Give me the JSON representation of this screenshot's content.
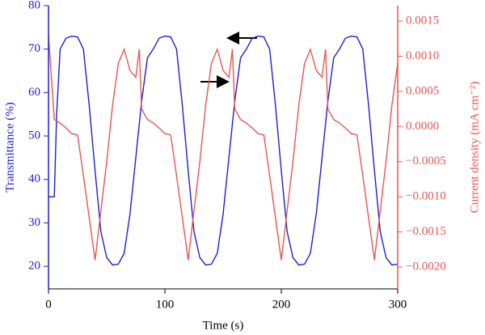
{
  "chart_data": {
    "type": "line",
    "xlabel": "Time (s)",
    "ylabel": "Transmittance (%)",
    "y2label": "Current density (mA cm⁻²)",
    "xlim": [
      0,
      300
    ],
    "xticks": [
      0,
      100,
      200,
      300
    ],
    "ylim": [
      14.8,
      80
    ],
    "yticks": [
      20,
      30,
      40,
      50,
      60,
      70,
      80
    ],
    "y2lim": [
      -0.00231,
      0.00172
    ],
    "y2ticks": [
      {
        "value": -0.002,
        "label": "−0.0020"
      },
      {
        "value": -0.0015,
        "label": "−0.0015"
      },
      {
        "value": -0.001,
        "label": "−0.0010"
      },
      {
        "value": -0.0005,
        "label": "−0.0005"
      },
      {
        "value": 0,
        "label": "0.0000"
      },
      0.0005,
      {
        "value": 0.001,
        "label": "0.0010"
      },
      0.0015
    ],
    "ycolor": "#1f1fd0",
    "y2color": "#e8564f",
    "series": [
      {
        "color": "#1f1fd0",
        "x": [
          0,
          5,
          7,
          10,
          15,
          20,
          25,
          30,
          35,
          40,
          45,
          50,
          55,
          60,
          65,
          70,
          75,
          80,
          85,
          90,
          95,
          100,
          105,
          110,
          115,
          120,
          125,
          130,
          135,
          140,
          145,
          150,
          155,
          160,
          165,
          170,
          175,
          180,
          185,
          190,
          195,
          200,
          205,
          210,
          215,
          220,
          225,
          230,
          235,
          240,
          245,
          250,
          255,
          260,
          265,
          270,
          275,
          280,
          285,
          290,
          295,
          300
        ],
        "values": [
          36,
          36,
          55,
          70,
          72.5,
          73,
          72.8,
          70,
          57,
          42,
          28,
          22,
          20.3,
          20.5,
          23,
          32,
          45,
          58,
          68,
          70,
          72.5,
          73,
          72.8,
          70,
          57,
          42,
          28,
          22,
          20.3,
          20.5,
          23,
          32,
          45,
          58,
          68,
          70,
          72.5,
          73,
          72.8,
          70,
          57,
          42,
          28,
          22,
          20.3,
          20.5,
          23,
          32,
          45,
          58,
          68,
          70,
          72.5,
          73,
          72.8,
          70,
          57,
          42,
          28,
          22,
          20.3,
          20.5
        ]
      },
      {
        "color": "#e8564f",
        "axis": "y2",
        "x": [
          0,
          5,
          10,
          15,
          20,
          25,
          30,
          35,
          40,
          45,
          50,
          55,
          60,
          65,
          70,
          75,
          78,
          80,
          85,
          90,
          95,
          100,
          105,
          110,
          115,
          120,
          125,
          130,
          135,
          140,
          145,
          150,
          155,
          158,
          160,
          165,
          170,
          175,
          180,
          185,
          190,
          195,
          200,
          205,
          210,
          215,
          220,
          225,
          230,
          235,
          238,
          240,
          245,
          250,
          255,
          260,
          265,
          270,
          275,
          280,
          285,
          290,
          295,
          300
        ],
        "values": [
          0.0013,
          0.0001,
          5e-05,
          -2e-05,
          -0.0001,
          -0.00012,
          -0.0007,
          -0.0013,
          -0.0019,
          -0.0012,
          -0.0005,
          0.0003,
          0.0009,
          0.0011,
          0.0008,
          0.0007,
          0.0011,
          0.00025,
          0.0001,
          5e-05,
          -2e-05,
          -0.0001,
          -0.00012,
          -0.0007,
          -0.0013,
          -0.0019,
          -0.0012,
          -0.0005,
          0.0003,
          0.0009,
          0.0011,
          0.0008,
          0.0007,
          0.0011,
          0.00025,
          0.0001,
          5e-05,
          -2e-05,
          -0.0001,
          -0.00012,
          -0.0007,
          -0.0013,
          -0.0019,
          -0.0012,
          -0.0005,
          0.0003,
          0.0009,
          0.0011,
          0.0008,
          0.0007,
          0.0011,
          0.00025,
          0.0001,
          5e-05,
          -2e-05,
          -0.0001,
          -0.00012,
          -0.0007,
          -0.0013,
          -0.0019,
          -0.0012,
          -0.0005,
          0.0003,
          0.0009
        ]
      }
    ]
  }
}
